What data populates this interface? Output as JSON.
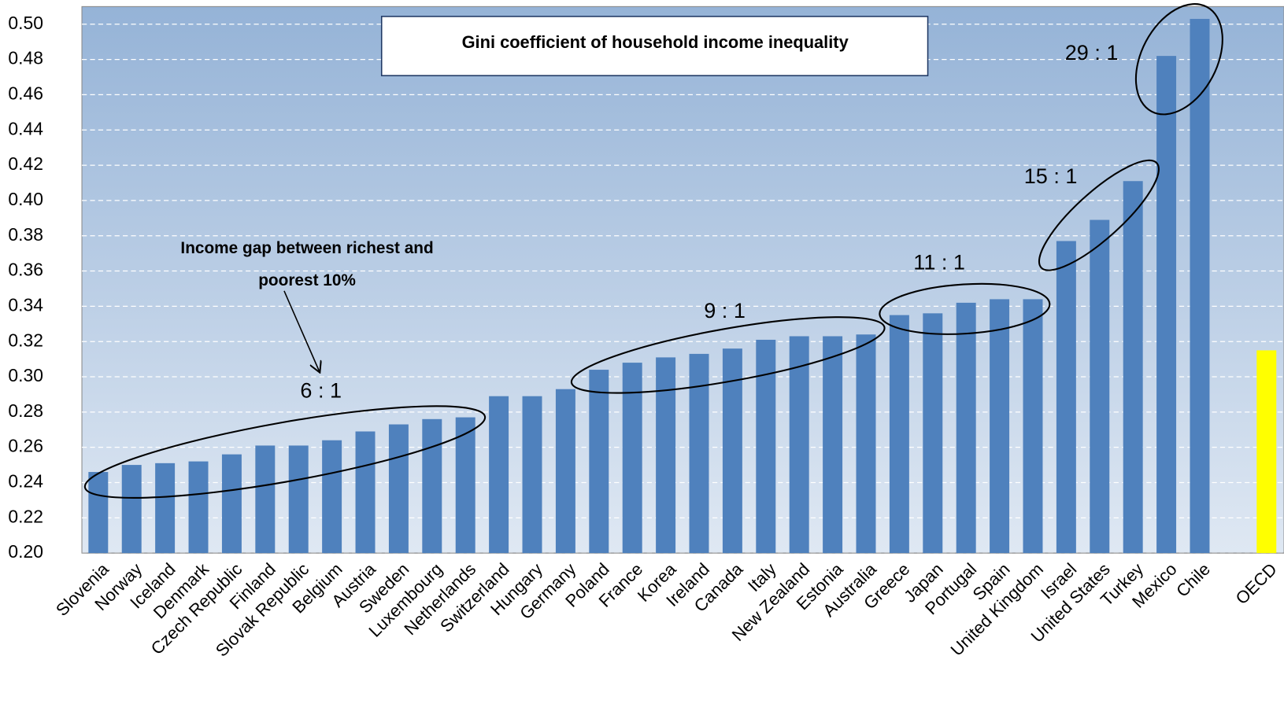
{
  "chart_data": {
    "type": "bar",
    "title": "Gini coefficient of household  income inequality",
    "categories": [
      "Slovenia",
      "Norway",
      "Iceland",
      "Denmark",
      "Czech Republic",
      "Finland",
      "Slovak Republic",
      "Belgium",
      "Austria",
      "Sweden",
      "Luxembourg",
      "Netherlands",
      "Switzerland",
      "Hungary",
      "Germany",
      "Poland",
      "France",
      "Korea",
      "Ireland",
      "Canada",
      "Italy",
      "New Zealand",
      "Estonia",
      "Australia",
      "Greece",
      "Japan",
      "Portugal",
      "Spain",
      "United Kingdom",
      "Israel",
      "United States",
      "Turkey",
      "Mexico",
      "Chile",
      null,
      "OECD"
    ],
    "values": [
      0.246,
      0.25,
      0.251,
      0.252,
      0.256,
      0.261,
      0.261,
      0.264,
      0.269,
      0.273,
      0.276,
      0.277,
      0.289,
      0.289,
      0.293,
      0.304,
      0.308,
      0.311,
      0.313,
      0.316,
      0.321,
      0.323,
      0.323,
      0.324,
      0.335,
      0.336,
      0.342,
      0.344,
      0.344,
      0.377,
      0.389,
      0.411,
      0.482,
      0.503,
      null,
      0.315
    ],
    "colors": [
      "#4f81bd",
      "#4f81bd",
      "#4f81bd",
      "#4f81bd",
      "#4f81bd",
      "#4f81bd",
      "#4f81bd",
      "#4f81bd",
      "#4f81bd",
      "#4f81bd",
      "#4f81bd",
      "#4f81bd",
      "#4f81bd",
      "#4f81bd",
      "#4f81bd",
      "#4f81bd",
      "#4f81bd",
      "#4f81bd",
      "#4f81bd",
      "#4f81bd",
      "#4f81bd",
      "#4f81bd",
      "#4f81bd",
      "#4f81bd",
      "#4f81bd",
      "#4f81bd",
      "#4f81bd",
      "#4f81bd",
      "#4f81bd",
      "#4f81bd",
      "#4f81bd",
      "#4f81bd",
      "#4f81bd",
      "#4f81bd",
      null,
      "#ffff00"
    ],
    "ylim": [
      0.2,
      0.51
    ],
    "yticks": [
      {
        "value": 0.2,
        "label": "0.20"
      },
      {
        "value": 0.22,
        "label": "0.22"
      },
      {
        "value": 0.24,
        "label": "0.24"
      },
      {
        "value": 0.26,
        "label": "0.26"
      },
      {
        "value": 0.28,
        "label": "0.28"
      },
      {
        "value": 0.3,
        "label": "0.30"
      },
      {
        "value": 0.32,
        "label": "0.32"
      },
      {
        "value": 0.34,
        "label": "0.34"
      },
      {
        "value": 0.36,
        "label": "0.36"
      },
      {
        "value": 0.38,
        "label": "0.38"
      },
      {
        "value": 0.4,
        "label": "0.40"
      },
      {
        "value": 0.42,
        "label": "0.42"
      },
      {
        "value": 0.44,
        "label": "0.44"
      },
      {
        "value": 0.46,
        "label": "0.46"
      },
      {
        "value": 0.48,
        "label": "0.48"
      },
      {
        "value": 0.5,
        "label": "0.50"
      }
    ],
    "grid": true,
    "annotations": [
      "Income gap between richest and",
      "poorest  10%",
      "6 : 1",
      "9 : 1",
      "11 : 1",
      "15 : 1",
      "29 : 1"
    ]
  }
}
